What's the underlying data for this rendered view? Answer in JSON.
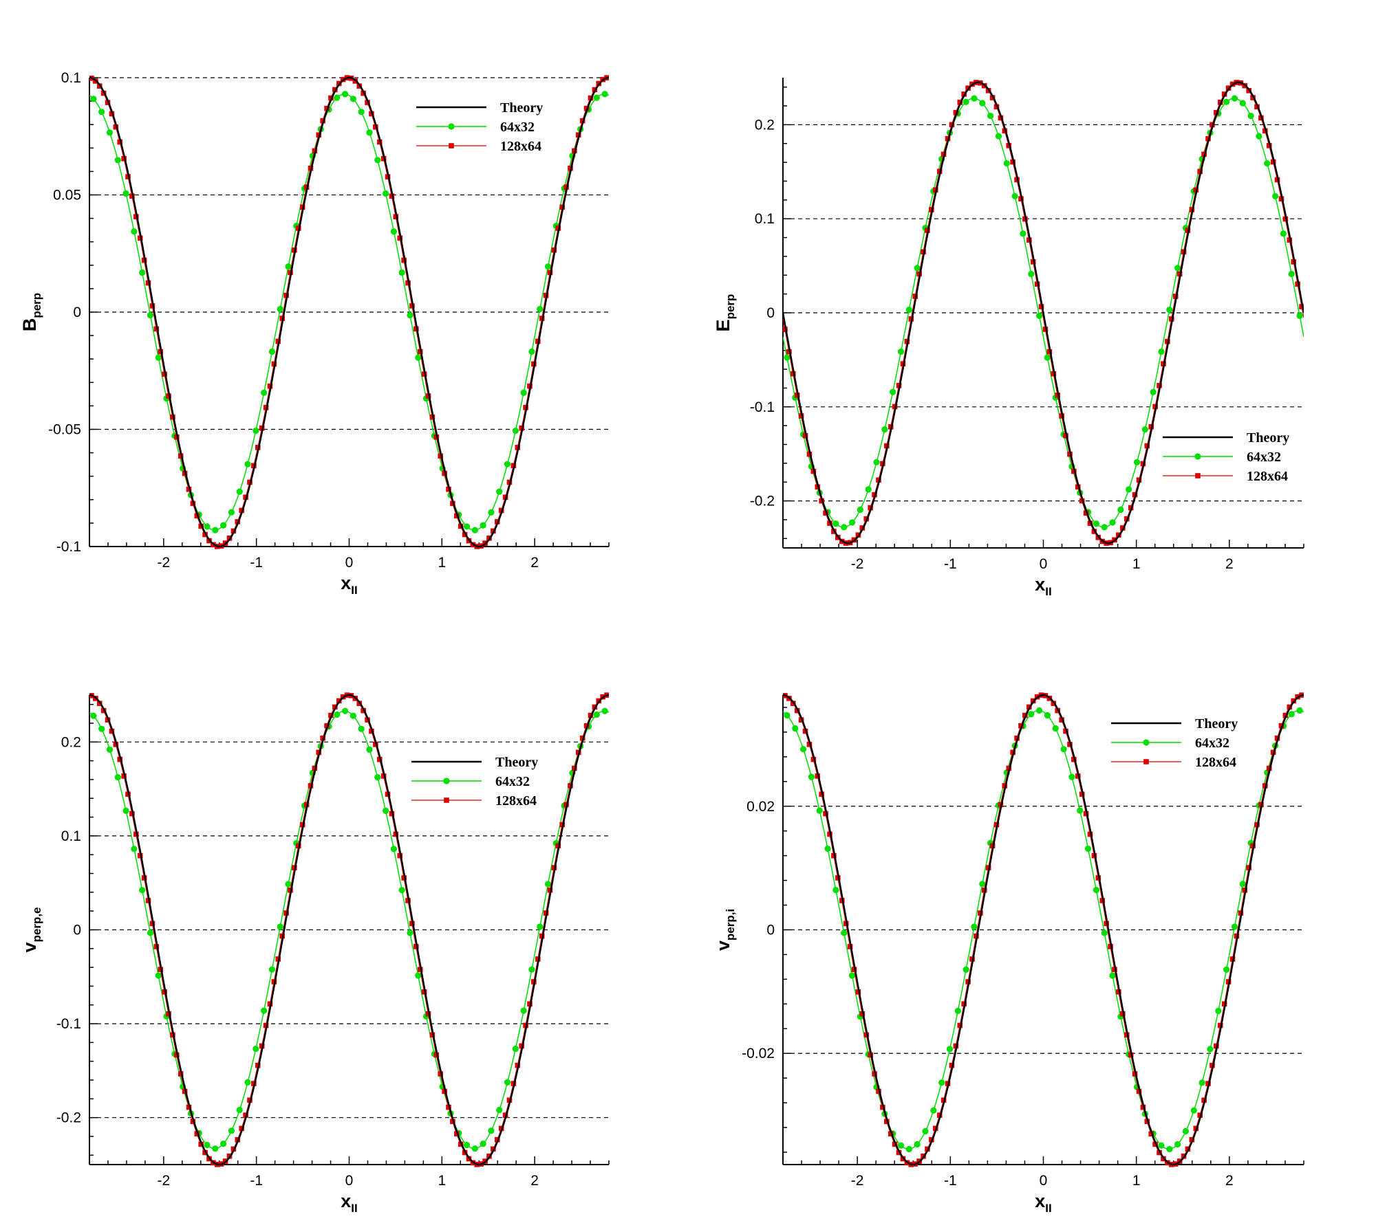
{
  "colors": {
    "theory": "#000000",
    "coarse": "#00dd00",
    "fine": "#dd0000",
    "grid": "#000000"
  },
  "legend": {
    "entries": [
      "Theory",
      "64x32",
      "128x64"
    ]
  },
  "chart_data": [
    {
      "type": "line",
      "ylabel": "B",
      "ylabel_sub": "perp",
      "xlabel": "x",
      "xlabel_sub": "II",
      "xlim": [
        -2.8,
        2.8
      ],
      "ylim": [
        -0.1,
        0.1
      ],
      "xticks": [
        -2,
        -1,
        0,
        1,
        2
      ],
      "xtick_labels": [
        "-2",
        "-1",
        "0",
        "1",
        "2"
      ],
      "yticks": [
        -0.1,
        -0.05,
        0,
        0.05,
        0.1
      ],
      "ytick_labels": [
        "-0.1",
        "-0.05",
        "0",
        "0.05",
        "0.1"
      ],
      "grid": "horizontal dashed",
      "legend_position": "top-right",
      "series": [
        {
          "name": "Theory",
          "function": "A*cos(2*pi*(x - x0)/L)",
          "A": 0.1,
          "L": 2.8,
          "x0": 0.0
        },
        {
          "name": "64x32",
          "function": "A*cos(2*pi*(x - x0)/L)",
          "A": 0.093,
          "L": 2.8,
          "x0": -0.05,
          "points": 64
        },
        {
          "name": "128x64",
          "function": "A*cos(2*pi*(x - x0)/L)",
          "A": 0.1,
          "L": 2.8,
          "x0": -0.01,
          "points": 128
        }
      ]
    },
    {
      "type": "line",
      "ylabel": "E",
      "ylabel_sub": "perp",
      "xlabel": "x",
      "xlabel_sub": "II",
      "xlim": [
        -2.8,
        2.8
      ],
      "ylim": [
        -0.25,
        0.25
      ],
      "xticks": [
        -2,
        -1,
        0,
        1,
        2
      ],
      "xtick_labels": [
        "-2",
        "-1",
        "0",
        "1",
        "2"
      ],
      "yticks": [
        -0.2,
        -0.1,
        0,
        0.1,
        0.2
      ],
      "ytick_labels": [
        "-0.2",
        "-0.1",
        "0",
        "0.1",
        "0.2"
      ],
      "grid": "horizontal dashed",
      "legend_position": "bottom-right",
      "series": [
        {
          "name": "Theory",
          "function": "-A*sin(2*pi*(x - x0)/L)",
          "A": 0.245,
          "L": 2.8,
          "x0": 0.0
        },
        {
          "name": "64x32",
          "function": "-A*sin(2*pi*(x - x0)/L)",
          "A": 0.228,
          "L": 2.8,
          "x0": -0.05,
          "points": 64
        },
        {
          "name": "128x64",
          "function": "-A*sin(2*pi*(x - x0)/L)",
          "A": 0.245,
          "L": 2.8,
          "x0": -0.01,
          "points": 128
        }
      ]
    },
    {
      "type": "line",
      "ylabel": "v",
      "ylabel_sub": "perp,e",
      "xlabel": "x",
      "xlabel_sub": "II",
      "xlim": [
        -2.8,
        2.8
      ],
      "ylim": [
        -0.25,
        0.25
      ],
      "xticks": [
        -2,
        -1,
        0,
        1,
        2
      ],
      "xtick_labels": [
        "-2",
        "-1",
        "0",
        "1",
        "2"
      ],
      "yticks": [
        -0.2,
        -0.1,
        0,
        0.1,
        0.2
      ],
      "ytick_labels": [
        "-0.2",
        "-0.1",
        "0",
        "0.1",
        "0.2"
      ],
      "grid": "horizontal dashed",
      "legend_position": "top-right",
      "series": [
        {
          "name": "Theory",
          "function": "A*cos(2*pi*(x - x0)/L)",
          "A": 0.25,
          "L": 2.8,
          "x0": 0.0
        },
        {
          "name": "64x32",
          "function": "A*cos(2*pi*(x - x0)/L)",
          "A": 0.233,
          "L": 2.8,
          "x0": -0.05,
          "points": 64
        },
        {
          "name": "128x64",
          "function": "A*cos(2*pi*(x - x0)/L)",
          "A": 0.25,
          "L": 2.8,
          "x0": -0.01,
          "points": 128
        }
      ]
    },
    {
      "type": "line",
      "ylabel": "v",
      "ylabel_sub": "perp,i",
      "xlabel": "x",
      "xlabel_sub": "II",
      "xlim": [
        -2.8,
        2.8
      ],
      "ylim": [
        -0.038,
        0.038
      ],
      "xticks": [
        -2,
        -1,
        0,
        1,
        2
      ],
      "xtick_labels": [
        "-2",
        "-1",
        "0",
        "1",
        "2"
      ],
      "yticks": [
        -0.02,
        0,
        0.02
      ],
      "ytick_labels": [
        "-0.02",
        "0",
        "0.02"
      ],
      "grid": "horizontal dashed",
      "legend_position": "top-right",
      "series": [
        {
          "name": "Theory",
          "function": "A*cos(2*pi*(x - x0)/L)",
          "A": 0.038,
          "L": 2.8,
          "x0": 0.0
        },
        {
          "name": "64x32",
          "function": "A*cos(2*pi*(x - x0)/L)",
          "A": 0.0355,
          "L": 2.8,
          "x0": -0.05,
          "points": 64
        },
        {
          "name": "128x64",
          "function": "A*cos(2*pi*(x - x0)/L)",
          "A": 0.038,
          "L": 2.8,
          "x0": -0.01,
          "points": 128
        }
      ]
    }
  ]
}
